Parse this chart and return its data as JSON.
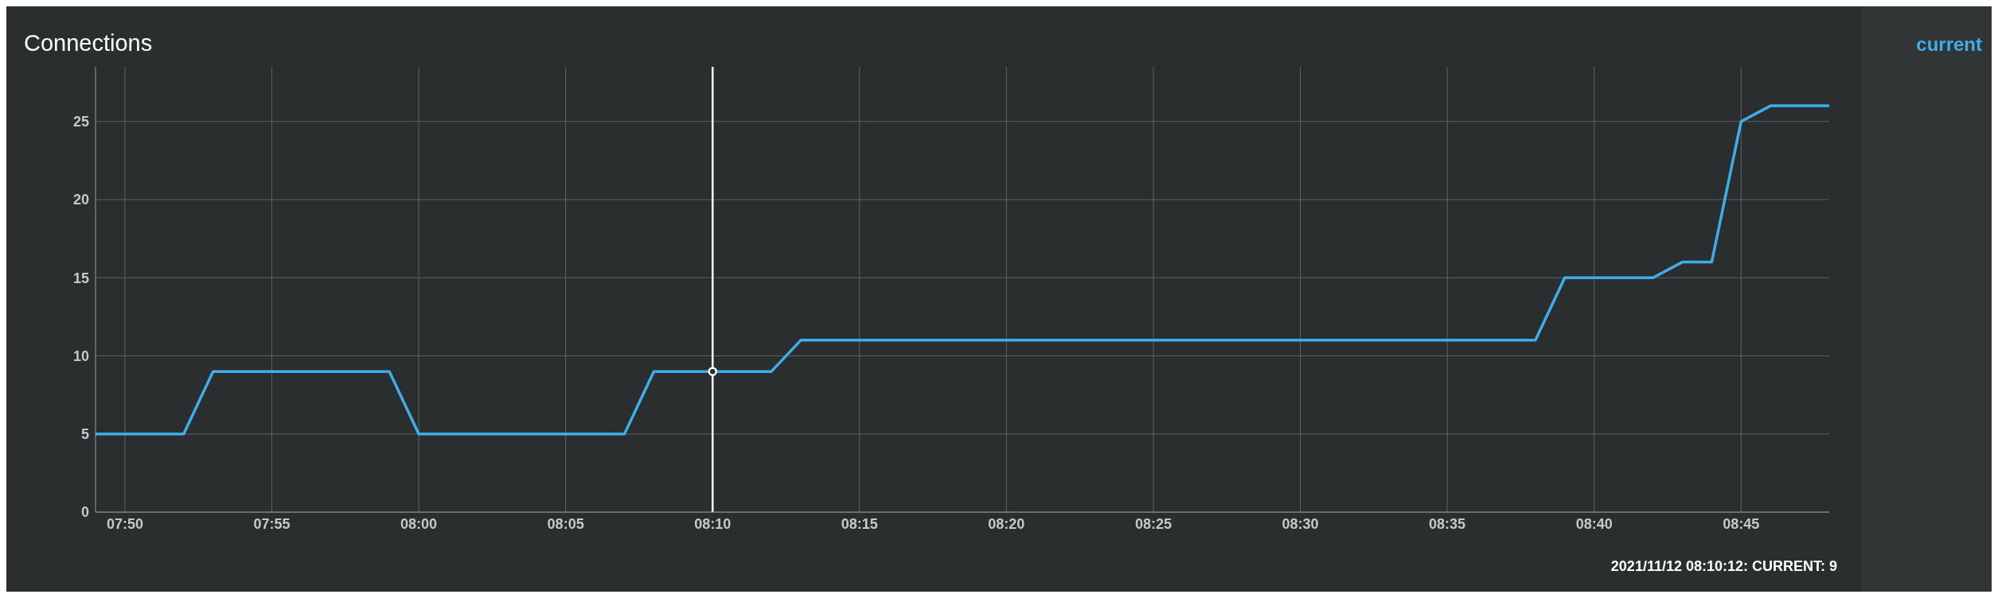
{
  "chart_data": {
    "type": "line",
    "title": "Connections",
    "xlim": [
      "2021-11-12T07:49",
      "2021-11-12T08:48"
    ],
    "xticks": [
      {
        "value": "2021-11-12T07:50",
        "label": "07:50"
      },
      {
        "value": "2021-11-12T07:55",
        "label": "07:55"
      },
      {
        "value": "2021-11-12T08:00",
        "label": "08:00"
      },
      {
        "value": "2021-11-12T08:05",
        "label": "08:05"
      },
      {
        "value": "2021-11-12T08:10",
        "label": "08:10"
      },
      {
        "value": "2021-11-12T08:15",
        "label": "08:15"
      },
      {
        "value": "2021-11-12T08:20",
        "label": "08:20"
      },
      {
        "value": "2021-11-12T08:25",
        "label": "08:25"
      },
      {
        "value": "2021-11-12T08:30",
        "label": "08:30"
      },
      {
        "value": "2021-11-12T08:35",
        "label": "08:35"
      },
      {
        "value": "2021-11-12T08:40",
        "label": "08:40"
      },
      {
        "value": "2021-11-12T08:45",
        "label": "08:45"
      }
    ],
    "ylim": [
      0,
      28.5
    ],
    "yticks": [
      0,
      5,
      10,
      15,
      20,
      25
    ],
    "grid": true,
    "legend": "right",
    "series": [
      {
        "name": "current",
        "color": "#3daee9",
        "x": [
          "2021-11-12T07:49",
          "2021-11-12T07:52",
          "2021-11-12T07:53",
          "2021-11-12T07:59",
          "2021-11-12T08:00",
          "2021-11-12T08:07",
          "2021-11-12T08:08",
          "2021-11-12T08:12",
          "2021-11-12T08:13",
          "2021-11-12T08:38",
          "2021-11-12T08:39",
          "2021-11-12T08:42",
          "2021-11-12T08:43",
          "2021-11-12T08:44",
          "2021-11-12T08:45",
          "2021-11-12T08:46",
          "2021-11-12T08:48"
        ],
        "values": [
          5,
          5,
          9,
          9,
          5,
          5,
          9,
          9,
          11,
          11,
          15,
          15,
          16,
          16,
          25,
          26,
          26
        ],
        "marker": "none"
      },
      {
        "type": "scatter",
        "color": "#ffffff",
        "marker": "circle",
        "x": [
          "2021-11-12T08:10"
        ],
        "values": [
          9
        ]
      }
    ],
    "ref_lines": [
      {
        "axis": "x",
        "value": "2021-11-12T08:10",
        "color": "#ffffff"
      }
    ],
    "annotations": [
      "2021/11/12 08:10:12: CURRENT: 9"
    ]
  }
}
